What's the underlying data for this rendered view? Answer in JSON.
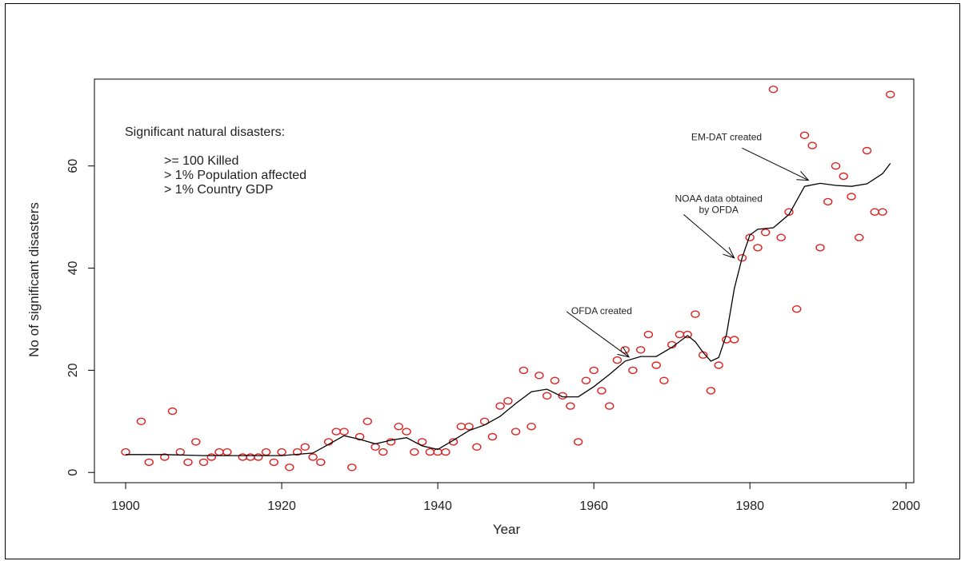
{
  "chart_data": {
    "type": "scatter",
    "title": "",
    "xlabel": "Year",
    "ylabel": "No of significant disasters",
    "xlim": [
      1896,
      2001
    ],
    "ylim": [
      -2,
      77
    ],
    "x_ticks": [
      1900,
      1920,
      1940,
      1960,
      1980,
      2000
    ],
    "y_ticks": [
      0,
      20,
      40,
      60
    ],
    "grid": false,
    "legend": {
      "title": "Significant natural disasters:",
      "items": [
        ">= 100 Killed",
        "> 1% Population affected",
        "> 1% Country GDP"
      ]
    },
    "series": [
      {
        "type": "scatter",
        "color": "#e02020",
        "points": [
          [
            1900,
            4
          ],
          [
            1902,
            10
          ],
          [
            1903,
            2
          ],
          [
            1905,
            3
          ],
          [
            1906,
            12
          ],
          [
            1907,
            4
          ],
          [
            1908,
            2
          ],
          [
            1909,
            6
          ],
          [
            1910,
            2
          ],
          [
            1911,
            3
          ],
          [
            1912,
            4
          ],
          [
            1913,
            4
          ],
          [
            1915,
            3
          ],
          [
            1916,
            3
          ],
          [
            1917,
            3
          ],
          [
            1918,
            4
          ],
          [
            1919,
            2
          ],
          [
            1920,
            4
          ],
          [
            1921,
            1
          ],
          [
            1922,
            4
          ],
          [
            1923,
            5
          ],
          [
            1924,
            3
          ],
          [
            1925,
            2
          ],
          [
            1926,
            6
          ],
          [
            1927,
            8
          ],
          [
            1928,
            8
          ],
          [
            1929,
            1
          ],
          [
            1930,
            7
          ],
          [
            1931,
            10
          ],
          [
            1932,
            5
          ],
          [
            1933,
            4
          ],
          [
            1934,
            6
          ],
          [
            1935,
            9
          ],
          [
            1936,
            8
          ],
          [
            1937,
            4
          ],
          [
            1938,
            6
          ],
          [
            1939,
            4
          ],
          [
            1940,
            4
          ],
          [
            1941,
            4
          ],
          [
            1942,
            6
          ],
          [
            1943,
            9
          ],
          [
            1944,
            9
          ],
          [
            1945,
            5
          ],
          [
            1946,
            10
          ],
          [
            1947,
            7
          ],
          [
            1948,
            13
          ],
          [
            1949,
            14
          ],
          [
            1950,
            8
          ],
          [
            1951,
            20
          ],
          [
            1952,
            9
          ],
          [
            1953,
            19
          ],
          [
            1954,
            15
          ],
          [
            1955,
            18
          ],
          [
            1956,
            15
          ],
          [
            1957,
            13
          ],
          [
            1958,
            6
          ],
          [
            1959,
            18
          ],
          [
            1960,
            20
          ],
          [
            1961,
            16
          ],
          [
            1962,
            13
          ],
          [
            1963,
            22
          ],
          [
            1964,
            24
          ],
          [
            1965,
            20
          ],
          [
            1966,
            24
          ],
          [
            1967,
            27
          ],
          [
            1968,
            21
          ],
          [
            1969,
            18
          ],
          [
            1970,
            25
          ],
          [
            1971,
            27
          ],
          [
            1972,
            27
          ],
          [
            1973,
            31
          ],
          [
            1974,
            23
          ],
          [
            1975,
            16
          ],
          [
            1976,
            21
          ],
          [
            1977,
            26
          ],
          [
            1978,
            26
          ],
          [
            1979,
            42
          ],
          [
            1980,
            46
          ],
          [
            1981,
            44
          ],
          [
            1982,
            47
          ],
          [
            1983,
            75
          ],
          [
            1984,
            46
          ],
          [
            1985,
            51
          ],
          [
            1986,
            32
          ],
          [
            1987,
            66
          ],
          [
            1988,
            64
          ],
          [
            1989,
            44
          ],
          [
            1990,
            53
          ],
          [
            1991,
            60
          ],
          [
            1992,
            58
          ],
          [
            1993,
            54
          ],
          [
            1994,
            46
          ],
          [
            1995,
            63
          ],
          [
            1996,
            51
          ],
          [
            1997,
            51
          ],
          [
            1998,
            74
          ]
        ]
      },
      {
        "type": "line",
        "color": "#000000",
        "points": [
          [
            1900,
            3.5
          ],
          [
            1905,
            3.5
          ],
          [
            1910,
            3.3
          ],
          [
            1915,
            3.3
          ],
          [
            1920,
            3.3
          ],
          [
            1924,
            3.8
          ],
          [
            1926,
            5.5
          ],
          [
            1928,
            7.2
          ],
          [
            1930,
            6.5
          ],
          [
            1932,
            5.6
          ],
          [
            1934,
            6.3
          ],
          [
            1936,
            6.8
          ],
          [
            1938,
            5.2
          ],
          [
            1940,
            4.5
          ],
          [
            1942,
            6.3
          ],
          [
            1944,
            8.2
          ],
          [
            1946,
            9.3
          ],
          [
            1948,
            11
          ],
          [
            1950,
            13.5
          ],
          [
            1952,
            15.8
          ],
          [
            1954,
            16.3
          ],
          [
            1956,
            14.8
          ],
          [
            1958,
            14.8
          ],
          [
            1960,
            16.8
          ],
          [
            1962,
            19.2
          ],
          [
            1964,
            21.8
          ],
          [
            1966,
            22.7
          ],
          [
            1968,
            22.7
          ],
          [
            1970,
            24.5
          ],
          [
            1972,
            26.8
          ],
          [
            1973,
            25.6
          ],
          [
            1974,
            23.5
          ],
          [
            1975,
            21.8
          ],
          [
            1976,
            22.5
          ],
          [
            1977,
            27
          ],
          [
            1978,
            36
          ],
          [
            1979,
            42
          ],
          [
            1980,
            46.5
          ],
          [
            1981,
            47.6
          ],
          [
            1983,
            47.9
          ],
          [
            1985,
            50.5
          ],
          [
            1987,
            56
          ],
          [
            1989,
            56.6
          ],
          [
            1991,
            56.2
          ],
          [
            1993,
            56
          ],
          [
            1995,
            56.5
          ],
          [
            1997,
            58.5
          ],
          [
            1998,
            60.5
          ]
        ]
      }
    ],
    "annotations": [
      {
        "lines": [
          "EM-DAT created"
        ],
        "text_at": [
          1977,
          65
        ],
        "arrow_from": [
          1979,
          63.5
        ],
        "arrow_to": [
          1987.5,
          57.2
        ]
      },
      {
        "lines": [
          "NOAA data obtained",
          "by OFDA"
        ],
        "text_at": [
          1976,
          53
        ],
        "arrow_from": [
          1971.5,
          50.5
        ],
        "arrow_to": [
          1978,
          42
        ]
      },
      {
        "lines": [
          "OFDA created"
        ],
        "text_at": [
          1961,
          31
        ],
        "arrow_from": [
          1956.5,
          31.5
        ],
        "arrow_to": [
          1964.5,
          22.6
        ]
      }
    ]
  }
}
